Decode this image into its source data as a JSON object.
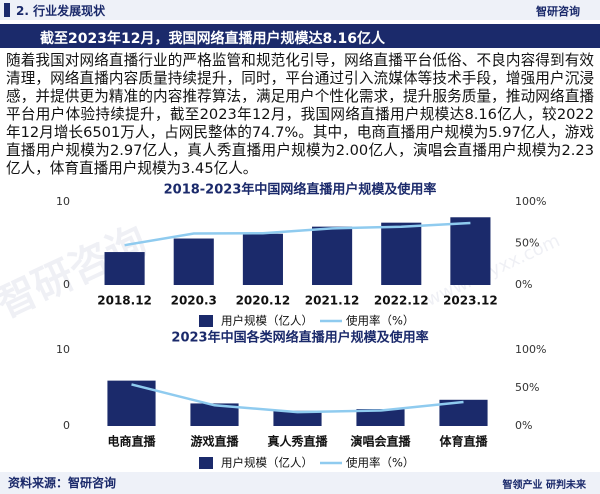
{
  "header": {
    "section": "2. 行业发展现状",
    "logo": "智研咨询"
  },
  "banner": "截至2023年12月，我国网络直播用户规模达8.16亿人",
  "paragraph": "随着我国对网络直播行业的严格监管和规范化引导，网络直播平台低俗、不良内容得到有效清理，网络直播内容质量持续提升，同时，平台通过引入流媒体等技术手段，增强用户沉浸感，并提供更为精准的内容推荐算法，满足用户个性化需求，提升服务质量，推动网络直播平台用户体验持续提升，截至2023年12月，我国网络直播用户规模达8.16亿人，较2022年12月增长6501万人，占网民整体的74.7%。其中，电商直播用户规模为5.97亿人，游戏直播用户规模为2.97亿人，真人秀直播用户规模为2.00亿人，演唱会直播用户规模为2.23亿人，体育直播用户规模为3.45亿人。",
  "watermark": [
    "智研咨询",
    "www.chyxx.com"
  ],
  "chart_data": [
    {
      "type": "bar-line",
      "title": "2018-2023年中国网络直播用户规模及使用率",
      "categories": [
        "2018.12",
        "2020.3",
        "2020.12",
        "2021.12",
        "2022.12",
        "2023.12"
      ],
      "series": [
        {
          "name": "用户规模（亿人）",
          "color": "#1b2a6b",
          "values": [
            3.97,
            5.6,
            6.17,
            7.03,
            7.51,
            8.16
          ]
        },
        {
          "name": "使用率（%）",
          "color": "#8fcbef",
          "axis": "y2",
          "values": [
            47.9,
            62.0,
            62.4,
            68.2,
            70.3,
            74.7
          ]
        }
      ],
      "ylim": [
        0,
        10
      ],
      "yticks": [
        0,
        10
      ],
      "y2lim": [
        0,
        100
      ],
      "y2ticks": [
        {
          "value": 0,
          "label": "0%"
        },
        {
          "value": 50,
          "label": "50%"
        },
        {
          "value": 100,
          "label": "100%"
        }
      ]
    },
    {
      "type": "bar-line",
      "title": "2023年中国各类网络直播用户规模及使用率",
      "categories": [
        "电商直播",
        "游戏直播",
        "真人秀直播",
        "演唱会直播",
        "体育直播"
      ],
      "series": [
        {
          "name": "用户规模（亿人）",
          "color": "#1b2a6b",
          "values": [
            5.97,
            2.97,
            2.0,
            2.23,
            3.45
          ]
        },
        {
          "name": "使用率（%）",
          "color": "#8fcbef",
          "axis": "y2",
          "values": [
            54.7,
            27.2,
            18.3,
            20.4,
            31.6
          ]
        }
      ],
      "ylim": [
        0,
        10
      ],
      "yticks": [
        0,
        10
      ],
      "y2lim": [
        0,
        100
      ],
      "y2ticks": [
        {
          "value": 0,
          "label": "0%"
        },
        {
          "value": 50,
          "label": "50%"
        },
        {
          "value": 100,
          "label": "100%"
        }
      ]
    }
  ],
  "footer": {
    "source": "资料来源：智研咨询",
    "slogan": "智领产业 研判未来"
  }
}
